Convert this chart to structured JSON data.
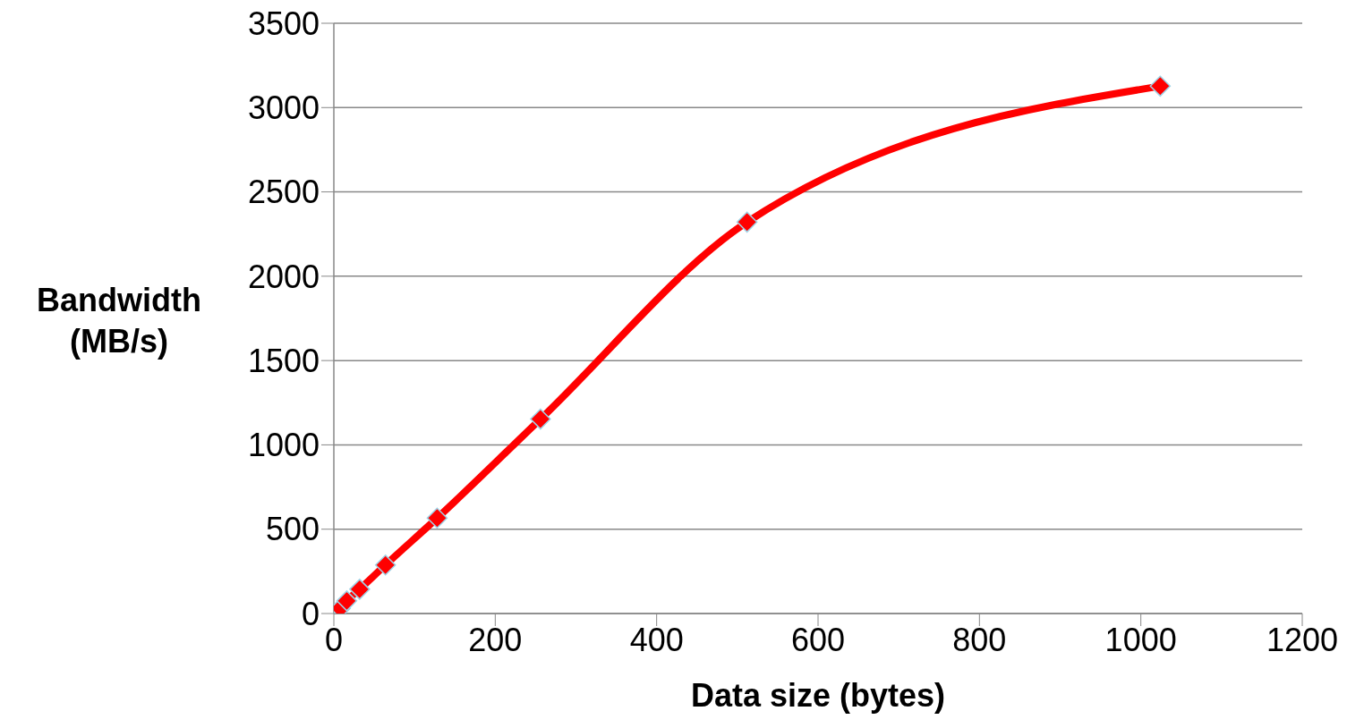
{
  "chart_data": {
    "type": "line",
    "xlabel": "Data size (bytes)",
    "ylabel": "Bandwidth (MB/s)",
    "x": [
      8,
      16,
      32,
      64,
      128,
      256,
      512,
      1024
    ],
    "series": [
      {
        "color": "#ff0000",
        "values": [
          30,
          75,
          144,
          288,
          566,
          1153,
          2321,
          3127
        ]
      }
    ],
    "xlim": [
      0,
      1200
    ],
    "xticks": [
      0,
      200,
      400,
      600,
      800,
      1000,
      1200
    ],
    "ylim": [
      0,
      3500
    ],
    "yticks": [
      0,
      500,
      1000,
      1500,
      2000,
      2500,
      3000,
      3500
    ],
    "grid": "y",
    "marker": "diamond",
    "line_style": "solid",
    "legend": false
  }
}
